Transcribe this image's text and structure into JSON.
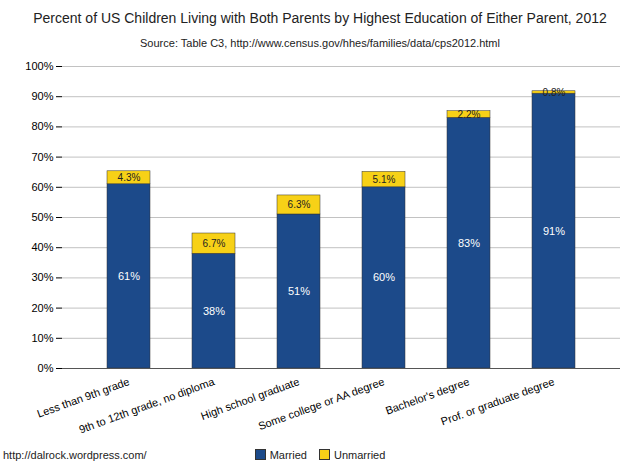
{
  "chart_data": {
    "type": "bar",
    "title": "Percent of US Children Living with Both Parents by Highest Education of Either Parent, 2012",
    "subtitle": "Source: Table C3, http://www.census.gov/hhes/families/data/cps2012.html",
    "annotation": "http://dalrock.wordpress.com/",
    "categories": [
      "Less than 9th grade",
      "9th to 12th grade, no diploma",
      "High school graduate",
      "Some college or AA degree",
      "Bachelor's degree",
      "Prof. or graduate degree"
    ],
    "series": [
      {
        "name": "Married",
        "color": "#1c4a8a",
        "values": [
          61,
          38,
          51,
          60,
          83,
          91
        ],
        "value_labels": [
          "61%",
          "38%",
          "51%",
          "60%",
          "83%",
          "91%"
        ]
      },
      {
        "name": "Unmarried",
        "color": "#f7d117",
        "values": [
          4.3,
          6.7,
          6.3,
          5.1,
          2.2,
          0.8
        ],
        "value_labels": [
          "4.3%",
          "6.7%",
          "6.3%",
          "5.1%",
          "2.2%",
          "0.8%"
        ]
      }
    ],
    "ylim": [
      0,
      100
    ],
    "yticks": [
      {
        "value": 0,
        "label": "0%"
      },
      {
        "value": 10,
        "label": "10%"
      },
      {
        "value": 20,
        "label": "20%"
      },
      {
        "value": 30,
        "label": "30%"
      },
      {
        "value": 40,
        "label": "40%"
      },
      {
        "value": 50,
        "label": "50%"
      },
      {
        "value": 60,
        "label": "60%"
      },
      {
        "value": 70,
        "label": "70%"
      },
      {
        "value": 80,
        "label": "80%"
      },
      {
        "value": 90,
        "label": "90%"
      },
      {
        "value": 100,
        "label": "100%"
      }
    ],
    "grid": true,
    "stacked": true,
    "data_labels": true,
    "legend": "bottom"
  }
}
